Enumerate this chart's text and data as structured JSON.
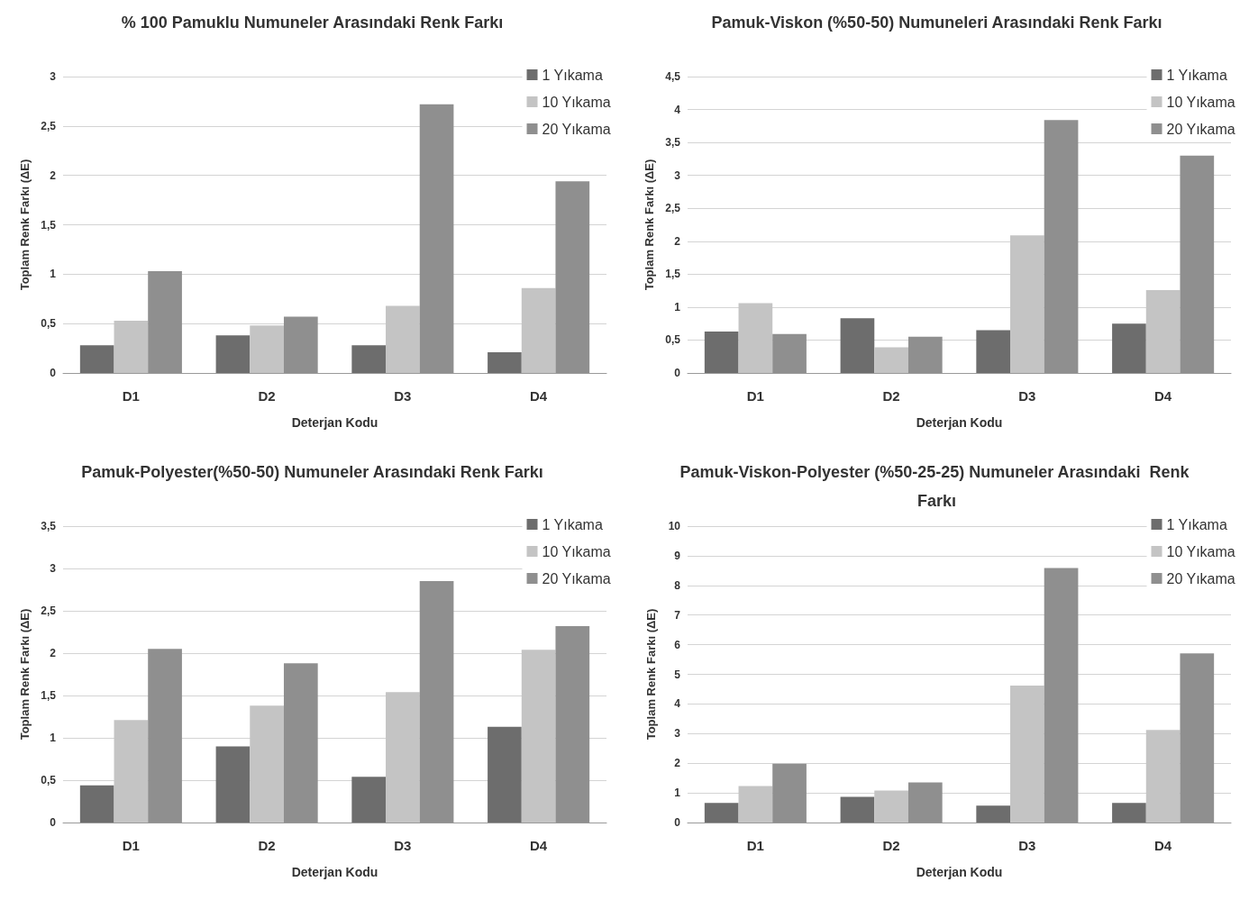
{
  "chart_data": [
    {
      "type": "bar",
      "title": "% 100 Pamuklu Numuneler Arasındaki Renk Farkı",
      "xlabel": "Deterjan Kodu",
      "ylabel": "Toplam Renk Farkı (ΔE)",
      "categories": [
        "D1",
        "D2",
        "D3",
        "D4"
      ],
      "series": [
        {
          "name": "1 Yıkama",
          "color": "#6d6d6d",
          "values": [
            0.28,
            0.38,
            0.28,
            0.21
          ]
        },
        {
          "name": "10 Yıkama",
          "color": "#c4c4c4",
          "values": [
            0.53,
            0.48,
            0.68,
            0.86
          ]
        },
        {
          "name": "20 Yıkama",
          "color": "#8f8f8f",
          "values": [
            1.03,
            0.57,
            2.72,
            1.94
          ]
        }
      ],
      "ylim": [
        0,
        3
      ],
      "yticks": [
        0,
        {
          "value": 0.5,
          "label": "0,5"
        },
        1,
        {
          "value": 1.5,
          "label": "1,5"
        },
        2,
        {
          "value": 2.5,
          "label": "2,5"
        },
        3
      ],
      "grid": "y",
      "legend": "top right"
    },
    {
      "type": "bar",
      "title": "Pamuk-Viskon (%50-50) Numuneleri Arasındaki Renk Farkı",
      "xlabel": "Deterjan Kodu",
      "ylabel": "Toplam Renk Farkı (ΔE)",
      "categories": [
        "D1",
        "D2",
        "D3",
        "D4"
      ],
      "series": [
        {
          "name": "1 Yıkama",
          "color": "#6d6d6d",
          "values": [
            0.63,
            0.83,
            0.65,
            0.75
          ]
        },
        {
          "name": "10 Yıkama",
          "color": "#c4c4c4",
          "values": [
            1.06,
            0.39,
            2.09,
            1.26
          ]
        },
        {
          "name": "20 Yıkama",
          "color": "#8f8f8f",
          "values": [
            0.59,
            0.55,
            3.84,
            3.3
          ]
        }
      ],
      "ylim": [
        0,
        4.5
      ],
      "yticks": [
        0,
        {
          "value": 0.5,
          "label": "0,5"
        },
        1,
        {
          "value": 1.5,
          "label": "1,5"
        },
        2,
        {
          "value": 2.5,
          "label": "2,5"
        },
        3,
        {
          "value": 3.5,
          "label": "3,5"
        },
        4,
        {
          "value": 4.5,
          "label": "4,5"
        }
      ],
      "grid": "y",
      "legend": "top right"
    },
    {
      "type": "bar",
      "title": "Pamuk-Polyester(%50-50) Numuneler Arasındaki Renk Farkı",
      "xlabel": "Deterjan Kodu",
      "ylabel": "Toplam Renk Farkı (ΔE)",
      "categories": [
        "D1",
        "D2",
        "D3",
        "D4"
      ],
      "series": [
        {
          "name": "1 Yıkama",
          "color": "#6d6d6d",
          "values": [
            0.44,
            0.9,
            0.54,
            1.13
          ]
        },
        {
          "name": "10 Yıkama",
          "color": "#c4c4c4",
          "values": [
            1.21,
            1.38,
            1.54,
            2.04
          ]
        },
        {
          "name": "20 Yıkama",
          "color": "#8f8f8f",
          "values": [
            2.05,
            1.88,
            2.85,
            2.32
          ]
        }
      ],
      "ylim": [
        0,
        3.5
      ],
      "yticks": [
        0,
        {
          "value": 0.5,
          "label": "0,5"
        },
        1,
        {
          "value": 1.5,
          "label": "1,5"
        },
        2,
        {
          "value": 2.5,
          "label": "2,5"
        },
        3,
        {
          "value": 3.5,
          "label": "3,5"
        }
      ],
      "grid": "y",
      "legend": "top right"
    },
    {
      "type": "bar",
      "title": "Pamuk-Viskon-Polyester (%50-25-25) Numuneler Arasındaki  Renk Farkı",
      "xlabel": "Deterjan Kodu",
      "ylabel": "Toplam Renk Farkı (ΔE)",
      "categories": [
        "D1",
        "D2",
        "D3",
        "D4"
      ],
      "series": [
        {
          "name": "1 Yıkama",
          "color": "#6d6d6d",
          "values": [
            0.66,
            0.87,
            0.57,
            0.66
          ]
        },
        {
          "name": "10 Yıkama",
          "color": "#c4c4c4",
          "values": [
            1.23,
            1.08,
            4.62,
            3.12
          ]
        },
        {
          "name": "20 Yıkama",
          "color": "#8f8f8f",
          "values": [
            1.98,
            1.35,
            8.59,
            5.71
          ]
        }
      ],
      "ylim": [
        0,
        10
      ],
      "yticks": [
        0,
        1,
        2,
        3,
        4,
        5,
        6,
        7,
        8,
        9,
        10
      ],
      "grid": "y",
      "legend": "top right"
    }
  ]
}
